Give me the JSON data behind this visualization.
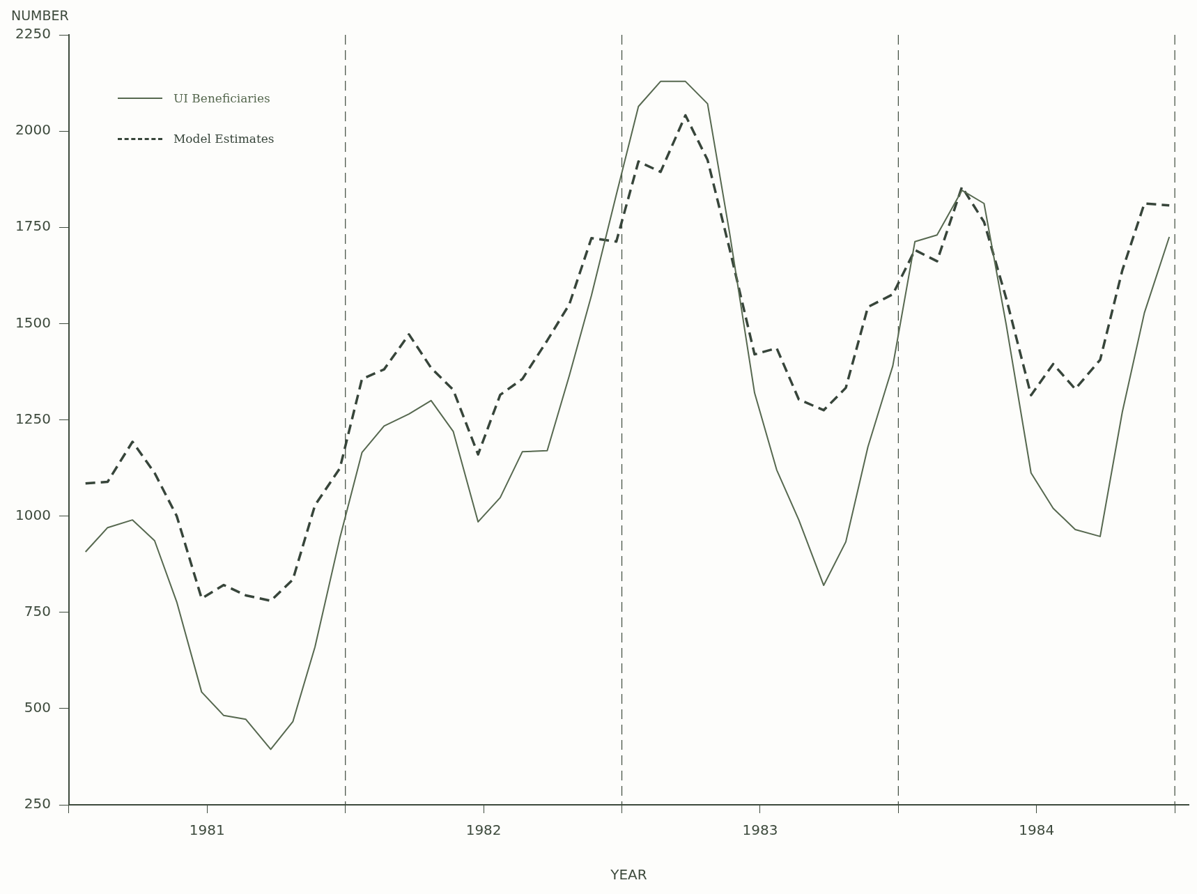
{
  "chart_data": {
    "type": "line",
    "xlabel": "YEAR",
    "ylabel": "NUMBER",
    "x": [
      1981.06,
      1981.14,
      1981.23,
      1981.31,
      1981.39,
      1981.48,
      1981.56,
      1981.64,
      1981.73,
      1981.81,
      1981.89,
      1981.98,
      1982.06,
      1982.14,
      1982.23,
      1982.31,
      1982.39,
      1982.48,
      1982.56,
      1982.64,
      1982.73,
      1982.81,
      1982.89,
      1982.98,
      1983.06,
      1983.14,
      1983.23,
      1983.31,
      1983.39,
      1983.48,
      1983.56,
      1983.64,
      1983.73,
      1983.81,
      1983.89,
      1983.98,
      1984.06,
      1984.14,
      1984.23,
      1984.31,
      1984.39,
      1984.48,
      1984.56,
      1984.64,
      1984.73,
      1984.81,
      1984.89,
      1984.98
    ],
    "series": [
      {
        "name": "UI Beneficiaries",
        "color": "#56684f",
        "line_style": "solid",
        "values": [
          907,
          970,
          990,
          936,
          777,
          543,
          482,
          472,
          394,
          466,
          660,
          943,
          1165,
          1234,
          1265,
          1300,
          1220,
          985,
          1048,
          1167,
          1170,
          1365,
          1573,
          1835,
          2064,
          2129,
          2129,
          2071,
          1734,
          1320,
          1120,
          990,
          820,
          933,
          1180,
          1390,
          1713,
          1730,
          1846,
          1812,
          1498,
          1112,
          1020,
          965,
          947,
          1270,
          1528,
          1725
        ]
      },
      {
        "name": "Model Estimates",
        "color": "#37453a",
        "line_style": "dashed",
        "values": [
          1085,
          1089,
          1193,
          1112,
          1000,
          786,
          821,
          794,
          780,
          835,
          1028,
          1124,
          1356,
          1381,
          1472,
          1385,
          1328,
          1160,
          1315,
          1356,
          1456,
          1550,
          1722,
          1713,
          1921,
          1894,
          2041,
          1925,
          1693,
          1420,
          1436,
          1303,
          1275,
          1333,
          1543,
          1576,
          1691,
          1662,
          1855,
          1764,
          1566,
          1314,
          1395,
          1330,
          1406,
          1638,
          1812,
          1807
        ]
      }
    ],
    "xlim": [
      1981,
      1985.05
    ],
    "xticks": [
      {
        "value": 1981,
        "label": null
      },
      {
        "value": 1981.5,
        "label": "1981"
      },
      {
        "value": 1982,
        "label": null
      },
      {
        "value": 1982.5,
        "label": "1982"
      },
      {
        "value": 1983,
        "label": null
      },
      {
        "value": 1983.5,
        "label": "1983"
      },
      {
        "value": 1984,
        "label": null
      },
      {
        "value": 1984.5,
        "label": "1984"
      },
      {
        "value": 1985,
        "label": null
      }
    ],
    "ylim": [
      250,
      2250
    ],
    "yticks": [
      250,
      500,
      750,
      1000,
      1250,
      1500,
      1750,
      2000,
      2250
    ],
    "ref_lines": [
      {
        "axis": "x",
        "value": 1982,
        "line_style": "dashed"
      },
      {
        "axis": "x",
        "value": 1983,
        "line_style": "dashed"
      },
      {
        "axis": "x",
        "value": 1984,
        "line_style": "dashed"
      },
      {
        "axis": "x",
        "value": 1985,
        "line_style": "dashed"
      }
    ],
    "grid": false,
    "legend": "top left",
    "marker": "none"
  }
}
